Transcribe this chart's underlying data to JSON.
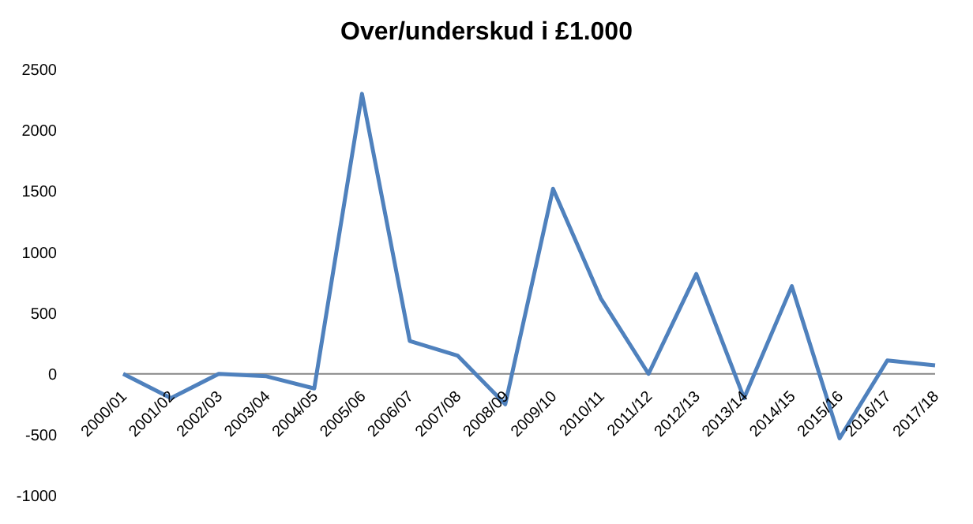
{
  "chart_data": {
    "type": "line",
    "title": "Over/underskud i £1.000",
    "categories": [
      "2000/01",
      "2001/02",
      "2002/03",
      "2003/04",
      "2004/05",
      "2005/06",
      "2006/07",
      "2007/08",
      "2008/09",
      "2009/10",
      "2010/11",
      "2011/12",
      "2012/13",
      "2013/14",
      "2014/15",
      "2015/16",
      "2016/17",
      "2017/18"
    ],
    "series": [
      {
        "color": "#4f81bd",
        "values": [
          0,
          -200,
          0,
          -20,
          -120,
          2300,
          270,
          150,
          -250,
          1520,
          620,
          0,
          820,
          -200,
          720,
          -530,
          110,
          70
        ]
      }
    ],
    "ylim": [
      -1000,
      2500
    ],
    "yticks": [
      -1000,
      -500,
      0,
      500,
      1000,
      1500,
      2000,
      2500
    ],
    "grid": false,
    "legend": false,
    "marker": "none",
    "line_style": "solid"
  }
}
